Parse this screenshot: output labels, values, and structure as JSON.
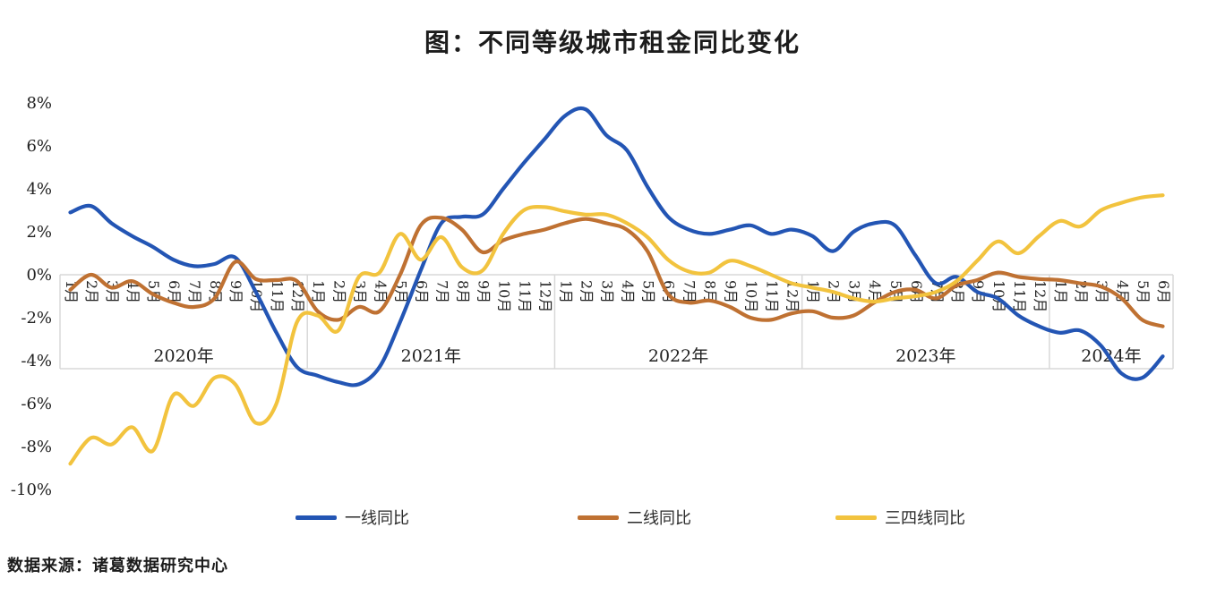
{
  "title": "图：不同等级城市租金同比变化",
  "source": "数据来源：诸葛数据研究中心",
  "legend": [
    {
      "label": "一线同比",
      "color": "#2355b4"
    },
    {
      "label": "二线同比",
      "color": "#bf7132"
    },
    {
      "label": "三四线同比",
      "color": "#f2c33e"
    }
  ],
  "chart_data": {
    "type": "line",
    "title": "图：不同等级城市租金同比变化",
    "xlabel": "",
    "ylabel": "",
    "ylim": [
      -10,
      8
    ],
    "ytick_step": 2,
    "ytick_labels": [
      "8%",
      "6%",
      "4%",
      "2%",
      "0%",
      "-2%",
      "-4%",
      "-6%",
      "-8%",
      "-10%"
    ],
    "grid": "zero-line-and-label-box-only",
    "legend_position": "bottom",
    "grid_color": "#d8d8d8",
    "x_labels": [
      "1月",
      "2月",
      "3月",
      "4月",
      "5月",
      "6月",
      "7月",
      "8月",
      "9月",
      "10月",
      "11月",
      "12月",
      "1月",
      "2月",
      "3月",
      "4月",
      "5月",
      "6月",
      "7月",
      "8月",
      "9月",
      "10月",
      "11月",
      "12月",
      "1月",
      "2月",
      "3月",
      "4月",
      "5月",
      "6月",
      "7月",
      "8月",
      "9月",
      "10月",
      "11月",
      "12月",
      "1月",
      "2月",
      "3月",
      "4月",
      "5月",
      "6月",
      "7月",
      "8月",
      "9月",
      "10月",
      "11月",
      "12月",
      "1月",
      "2月",
      "3月",
      "4月",
      "5月",
      "6月"
    ],
    "year_groups": [
      {
        "label": "2020年",
        "months": 12
      },
      {
        "label": "2021年",
        "months": 12
      },
      {
        "label": "2022年",
        "months": 12
      },
      {
        "label": "2023年",
        "months": 12
      },
      {
        "label": "2024年",
        "months": 6
      }
    ],
    "series": [
      {
        "name": "一线同比",
        "color": "#2355b4",
        "values": [
          2.9,
          3.2,
          2.4,
          1.8,
          1.3,
          0.7,
          0.4,
          0.5,
          0.8,
          -0.8,
          -2.7,
          -4.3,
          -4.7,
          -5.0,
          -5.1,
          -4.3,
          -2.2,
          0.2,
          2.4,
          2.7,
          2.8,
          4.0,
          5.2,
          6.3,
          7.4,
          7.7,
          6.5,
          5.8,
          4.1,
          2.7,
          2.1,
          1.9,
          2.1,
          2.3,
          1.9,
          2.1,
          1.8,
          1.1,
          2.0,
          2.4,
          2.3,
          0.9,
          -0.4,
          -0.1,
          -0.8,
          -1.1,
          -1.9,
          -2.4,
          -2.7,
          -2.6,
          -3.3,
          -4.6,
          -4.8,
          -3.8
        ]
      },
      {
        "name": "二线同比",
        "color": "#bf7132",
        "values": [
          -0.7,
          0.0,
          -0.6,
          -0.3,
          -0.9,
          -1.3,
          -1.5,
          -1.1,
          0.6,
          -0.2,
          -0.25,
          -0.3,
          -1.7,
          -2.1,
          -1.5,
          -1.7,
          0.0,
          2.3,
          2.65,
          2.1,
          1.05,
          1.6,
          1.9,
          2.1,
          2.4,
          2.6,
          2.4,
          2.1,
          1.1,
          -0.9,
          -1.3,
          -1.2,
          -1.5,
          -2.0,
          -2.1,
          -1.8,
          -1.7,
          -2.0,
          -1.9,
          -1.3,
          -0.8,
          -0.7,
          -1.1,
          -0.5,
          -0.25,
          0.1,
          -0.1,
          -0.2,
          -0.25,
          -0.4,
          -0.55,
          -1.1,
          -2.1,
          -2.4
        ]
      },
      {
        "name": "三四线同比",
        "color": "#f2c33e",
        "values": [
          -8.8,
          -7.6,
          -7.9,
          -7.1,
          -8.2,
          -5.6,
          -6.1,
          -4.8,
          -5.1,
          -6.9,
          -6.0,
          -2.2,
          -1.9,
          -2.6,
          -0.1,
          0.1,
          1.9,
          0.7,
          1.75,
          0.35,
          0.2,
          1.9,
          3.0,
          3.15,
          2.95,
          2.8,
          2.8,
          2.4,
          1.75,
          0.7,
          0.15,
          0.1,
          0.65,
          0.4,
          0.0,
          -0.4,
          -0.6,
          -0.8,
          -1.1,
          -1.25,
          -1.1,
          -1.0,
          -0.8,
          -0.3,
          0.65,
          1.55,
          1.0,
          1.8,
          2.5,
          2.25,
          3.0,
          3.35,
          3.6,
          3.7
        ]
      }
    ]
  },
  "legend_layout": {
    "lefts": [
      330,
      645,
      933
    ]
  }
}
